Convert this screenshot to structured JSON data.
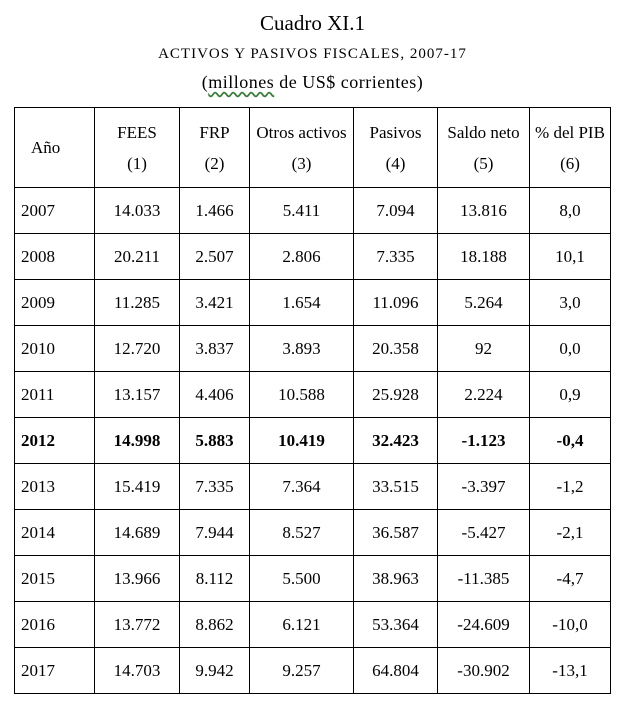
{
  "header": {
    "title": "Cuadro XI.1",
    "subtitle": "ACTIVOS Y PASIVOS FISCALES, 2007-17",
    "units_open": "(",
    "units_underlined": "millones",
    "units_rest": " de US$ corrientes)"
  },
  "table": {
    "columns": [
      {
        "label": "Año",
        "num": ""
      },
      {
        "label": "FEES",
        "num": "(1)"
      },
      {
        "label": "FRP",
        "num": "(2)"
      },
      {
        "label": "Otros activos",
        "num": "(3)"
      },
      {
        "label": "Pasivos",
        "num": "(4)"
      },
      {
        "label": "Saldo neto",
        "num": "(5)"
      },
      {
        "label": "% del PIB",
        "num": "(6)"
      }
    ],
    "rows": [
      {
        "year": "2007",
        "fees": "14.033",
        "frp": "1.466",
        "otros": "5.411",
        "pasivos": "7.094",
        "saldo": "13.816",
        "pib": "8,0",
        "bold": false
      },
      {
        "year": "2008",
        "fees": "20.211",
        "frp": "2.507",
        "otros": "2.806",
        "pasivos": "7.335",
        "saldo": "18.188",
        "pib": "10,1",
        "bold": false
      },
      {
        "year": "2009",
        "fees": "11.285",
        "frp": "3.421",
        "otros": "1.654",
        "pasivos": "11.096",
        "saldo": "5.264",
        "pib": "3,0",
        "bold": false
      },
      {
        "year": "2010",
        "fees": "12.720",
        "frp": "3.837",
        "otros": "3.893",
        "pasivos": "20.358",
        "saldo": "92",
        "pib": "0,0",
        "bold": false
      },
      {
        "year": "2011",
        "fees": "13.157",
        "frp": "4.406",
        "otros": "10.588",
        "pasivos": "25.928",
        "saldo": "2.224",
        "pib": "0,9",
        "bold": false
      },
      {
        "year": "2012",
        "fees": "14.998",
        "frp": "5.883",
        "otros": "10.419",
        "pasivos": "32.423",
        "saldo": "-1.123",
        "pib": "-0,4",
        "bold": true
      },
      {
        "year": "2013",
        "fees": "15.419",
        "frp": "7.335",
        "otros": "7.364",
        "pasivos": "33.515",
        "saldo": "-3.397",
        "pib": "-1,2",
        "bold": false
      },
      {
        "year": "2014",
        "fees": "14.689",
        "frp": "7.944",
        "otros": "8.527",
        "pasivos": "36.587",
        "saldo": "-5.427",
        "pib": "-2,1",
        "bold": false
      },
      {
        "year": "2015",
        "fees": "13.966",
        "frp": "8.112",
        "otros": "5.500",
        "pasivos": "38.963",
        "saldo": "-11.385",
        "pib": "-4,7",
        "bold": false
      },
      {
        "year": "2016",
        "fees": "13.772",
        "frp": "8.862",
        "otros": "6.121",
        "pasivos": "53.364",
        "saldo": "-24.609",
        "pib": "-10,0",
        "bold": false
      },
      {
        "year": "2017",
        "fees": "14.703",
        "frp": "9.942",
        "otros": "9.257",
        "pasivos": "64.804",
        "saldo": "-30.902",
        "pib": "-13,1",
        "bold": false
      }
    ]
  }
}
